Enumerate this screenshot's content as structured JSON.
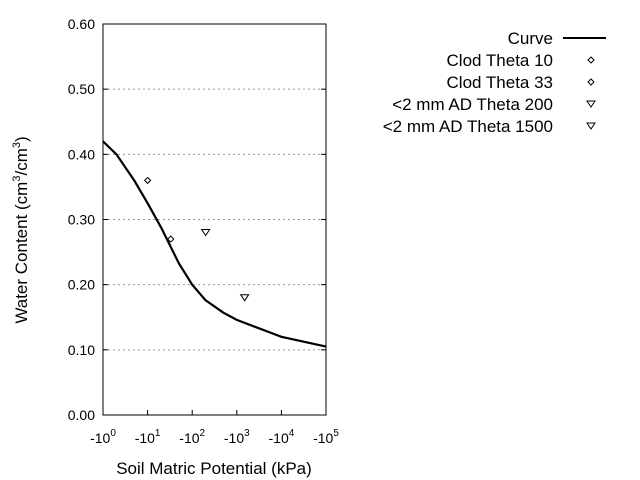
{
  "chart_data": {
    "type": "scatter",
    "title": "",
    "xlabel": "Soil Matric Potential (kPa)",
    "ylabel": "Water Content (cm3/cm3)",
    "ylabel_parts": {
      "base": "Water Content (cm",
      "sup1": "3",
      "mid": "/cm",
      "sup2": "3",
      "end": ")"
    },
    "x_scale": "log",
    "xlim": [
      1,
      100000
    ],
    "ylim": [
      0,
      0.6
    ],
    "x_ticks": [
      {
        "value": 1,
        "base": "-10",
        "exp": "0"
      },
      {
        "value": 10,
        "base": "-10",
        "exp": "1"
      },
      {
        "value": 100,
        "base": "-10",
        "exp": "2"
      },
      {
        "value": 1000,
        "base": "-10",
        "exp": "3"
      },
      {
        "value": 10000,
        "base": "-10",
        "exp": "4"
      },
      {
        "value": 100000,
        "base": "-10",
        "exp": "5"
      }
    ],
    "y_ticks": [
      "0.00",
      "0.10",
      "0.20",
      "0.30",
      "0.40",
      "0.50",
      "0.60"
    ],
    "grid": "horizontal dotted",
    "legend_placement": "right",
    "series": [
      {
        "name": "Curve",
        "kind": "line",
        "color": "#000000",
        "x": [
          1,
          2,
          5,
          10,
          20,
          50,
          100,
          200,
          500,
          1000,
          10000,
          100000
        ],
        "y": [
          0.42,
          0.4,
          0.36,
          0.325,
          0.288,
          0.233,
          0.2,
          0.176,
          0.157,
          0.146,
          0.12,
          0.105
        ]
      },
      {
        "name": "Clod Theta 10",
        "kind": "marker",
        "marker": "diamond",
        "x": [
          10
        ],
        "y": [
          0.36
        ]
      },
      {
        "name": "Clod Theta 33",
        "kind": "marker",
        "marker": "diamond",
        "x": [
          33
        ],
        "y": [
          0.27
        ]
      },
      {
        "name": "<2 mm AD Theta 200",
        "kind": "marker",
        "marker": "triangle-down",
        "x": [
          200
        ],
        "y": [
          0.28
        ]
      },
      {
        "name": "<2 mm AD Theta 1500",
        "kind": "marker",
        "marker": "triangle-down",
        "x": [
          1500
        ],
        "y": [
          0.18
        ]
      }
    ]
  }
}
